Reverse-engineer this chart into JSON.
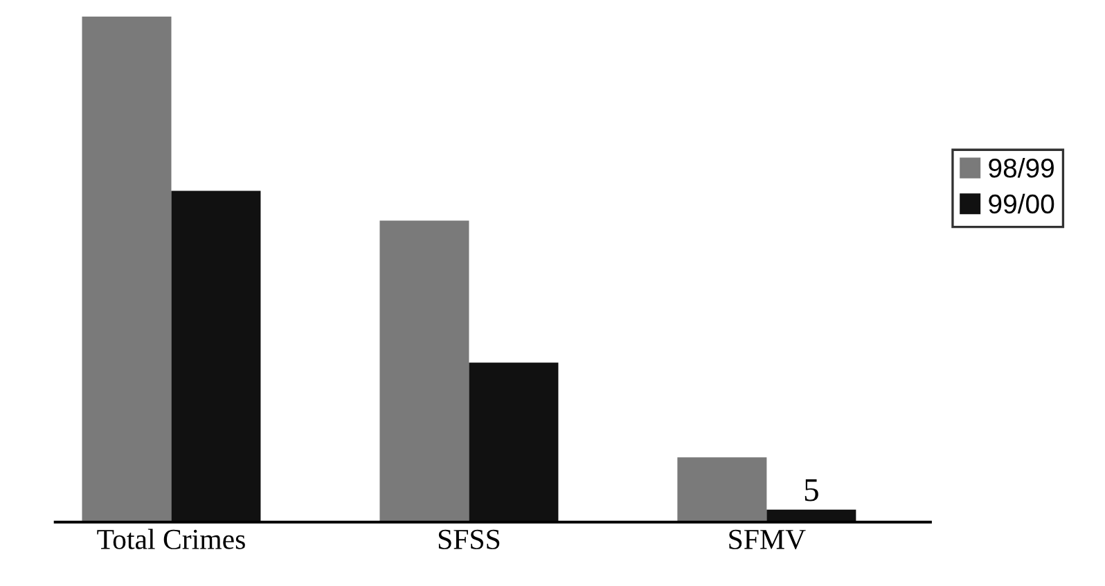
{
  "chart_data": {
    "type": "bar",
    "categories": [
      "Total Crimes",
      "SFSS",
      "SFMV"
    ],
    "series": [
      {
        "name": "98/99",
        "color": "#7a7a7a",
        "values": [
          203,
          121,
          26
        ]
      },
      {
        "name": "99/00",
        "color": "#111111",
        "values": [
          133,
          64,
          5
        ],
        "value_labels": [
          null,
          null,
          "5"
        ]
      }
    ],
    "ylim": [
      0,
      203
    ],
    "legend": "right",
    "grid": false
  }
}
